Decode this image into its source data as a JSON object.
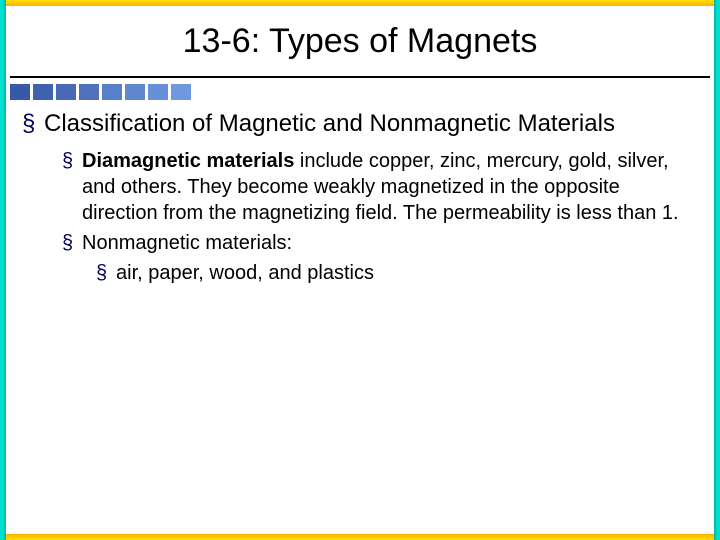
{
  "title": "13-6: Types of Magnets",
  "squares": {
    "colors": [
      "#3858a8",
      "#4060b0",
      "#4868b8",
      "#5070c0",
      "#5880c8",
      "#6088d0",
      "#6890d8",
      "#7098e0"
    ]
  },
  "bullet_glyph": "§",
  "bullet_color": "#000060",
  "rule_color": "#000000",
  "content": {
    "lvl1_text": "Classification of Magnetic and Nonmagnetic Materials",
    "lvl2a_bold": "Diamagnetic materials",
    "lvl2a_rest": " include copper, zinc, mercury, gold, silver, and others. They become weakly magnetized in the opposite direction from the magnetizing field. The permeability is less than 1.",
    "lvl2b_text": "Nonmagnetic materials:",
    "lvl3a_text": "air, paper, wood, and plastics"
  }
}
